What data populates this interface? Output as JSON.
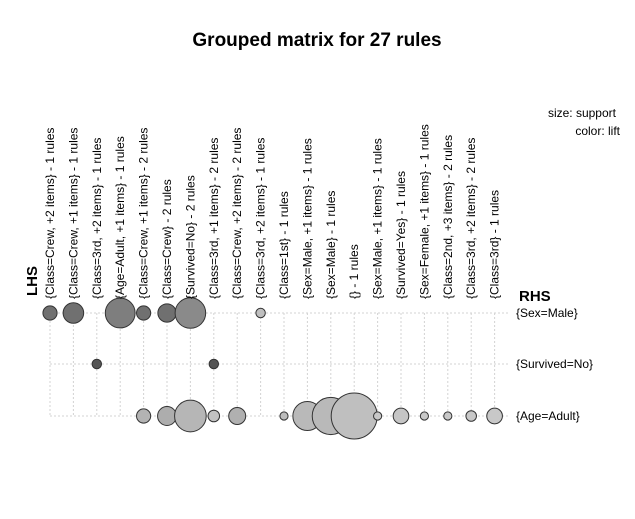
{
  "chart_data": {
    "type": "grouped-matrix",
    "title": "Grouped matrix for 27 rules",
    "legend": {
      "size_text": "size: support",
      "color_text": "color: lift"
    },
    "lhs_label": "LHS",
    "rhs_label": "RHS",
    "lhs_groups": [
      "{Class=Crew, +2 items} - 1 rules",
      "{Class=Crew, +1 items} - 1 rules",
      "{Class=3rd, +2 items} - 1 rules",
      "{Age=Adult, +1 items} - 1 rules",
      "{Class=Crew, +1 items} - 2 rules",
      "{Class=Crew} - 2 rules",
      "{Survived=No} - 2 rules",
      "{Class=3rd, +1 items} - 2 rules",
      "{Class=Crew, +2 items} - 2 rules",
      "{Class=3rd, +2 items} - 1 rules",
      "{Class=1st} - 1 rules",
      "{Sex=Male, +1 items} - 1 rules",
      "{Sex=Male} - 1 rules",
      "{} - 1 rules",
      "{Sex=Male, +1 items} - 1 rules",
      "{Survived=Yes} - 1 rules",
      "{Sex=Female, +1 items} - 1 rules",
      "{Class=2nd, +3 items} - 2 rules",
      "{Class=3rd, +2 items} - 2 rules",
      "{Class=3rd} - 1 rules"
    ],
    "rhs_items": [
      "{Sex=Male}",
      "{Survived=No}",
      "{Age=Adult}"
    ],
    "cells": [
      {
        "lhs": 0,
        "rhs": 0,
        "support": 0.09,
        "lift": 1.25
      },
      {
        "lhs": 1,
        "rhs": 0,
        "support": 0.19,
        "lift": 1.25
      },
      {
        "lhs": 2,
        "rhs": 1,
        "support": 0.04,
        "lift": 1.34
      },
      {
        "lhs": 3,
        "rhs": 0,
        "support": 0.4,
        "lift": 1.2
      },
      {
        "lhs": 4,
        "rhs": 0,
        "support": 0.09,
        "lift": 1.25
      },
      {
        "lhs": 4,
        "rhs": 2,
        "support": 0.09,
        "lift": 1.02
      },
      {
        "lhs": 5,
        "rhs": 0,
        "support": 0.15,
        "lift": 1.25
      },
      {
        "lhs": 5,
        "rhs": 2,
        "support": 0.16,
        "lift": 1.04
      },
      {
        "lhs": 6,
        "rhs": 0,
        "support": 0.42,
        "lift": 1.16
      },
      {
        "lhs": 6,
        "rhs": 2,
        "support": 0.45,
        "lift": 1.01
      },
      {
        "lhs": 7,
        "rhs": 1,
        "support": 0.04,
        "lift": 1.34
      },
      {
        "lhs": 7,
        "rhs": 2,
        "support": 0.06,
        "lift": 0.97
      },
      {
        "lhs": 8,
        "rhs": 2,
        "support": 0.13,
        "lift": 1.03
      },
      {
        "lhs": 9,
        "rhs": 0,
        "support": 0.04,
        "lift": 0.98
      },
      {
        "lhs": 10,
        "rhs": 2,
        "support": 0.03,
        "lift": 0.99
      },
      {
        "lhs": 11,
        "rhs": 2,
        "support": 0.38,
        "lift": 1.0
      },
      {
        "lhs": 12,
        "rhs": 2,
        "support": 0.62,
        "lift": 1.0
      },
      {
        "lhs": 13,
        "rhs": 2,
        "support": 0.95,
        "lift": 0.98
      },
      {
        "lhs": 14,
        "rhs": 2,
        "support": 0.03,
        "lift": 0.95
      },
      {
        "lhs": 15,
        "rhs": 2,
        "support": 0.11,
        "lift": 0.96
      },
      {
        "lhs": 16,
        "rhs": 2,
        "support": 0.03,
        "lift": 0.95
      },
      {
        "lhs": 17,
        "rhs": 2,
        "support": 0.03,
        "lift": 0.95
      },
      {
        "lhs": 18,
        "rhs": 2,
        "support": 0.05,
        "lift": 0.95
      },
      {
        "lhs": 19,
        "rhs": 2,
        "support": 0.11,
        "lift": 0.95
      }
    ],
    "grid": true
  }
}
